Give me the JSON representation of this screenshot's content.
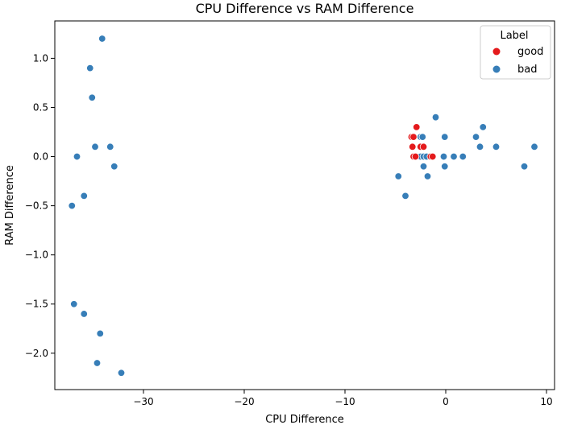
{
  "chart_data": {
    "type": "scatter",
    "title": "CPU Difference vs RAM Difference",
    "xlabel": "CPU Difference",
    "ylabel": "RAM Difference",
    "xlim": [
      -38.8,
      10.8
    ],
    "ylim": [
      -2.37,
      1.38
    ],
    "xticks": [
      -30,
      -20,
      -10,
      0,
      10
    ],
    "yticks": [
      1.0,
      0.5,
      0.0,
      -0.5,
      -1.0,
      -1.5,
      -2.0
    ],
    "xtick_labels": [
      "−30",
      "−20",
      "−10",
      "0",
      "10"
    ],
    "ytick_labels": [
      "1.0",
      "0.5",
      "0.0",
      "−0.5",
      "−1.0",
      "−1.5",
      "−2.0"
    ],
    "grid": false,
    "legend": {
      "title": "Label",
      "placement": "top-right"
    },
    "series": [
      {
        "name": "good",
        "color": "#e41a1c",
        "points": [
          [
            -3.4,
            0.2
          ],
          [
            -3.2,
            0.2
          ],
          [
            -2.9,
            0.3
          ],
          [
            -3.3,
            0.1
          ],
          [
            -2.5,
            0.1
          ],
          [
            -2.2,
            0.1
          ],
          [
            -3.2,
            0.0
          ],
          [
            -3.0,
            0.0
          ],
          [
            -1.5,
            0.0
          ],
          [
            -1.3,
            0.0
          ]
        ]
      },
      {
        "name": "bad",
        "color": "#377eb8",
        "points": [
          [
            -34.1,
            1.2
          ],
          [
            -35.3,
            0.9
          ],
          [
            -35.1,
            0.6
          ],
          [
            -34.8,
            0.1
          ],
          [
            -33.3,
            0.1
          ],
          [
            -36.6,
            0.0
          ],
          [
            -32.9,
            -0.1
          ],
          [
            -35.9,
            -0.4
          ],
          [
            -37.1,
            -0.5
          ],
          [
            -36.9,
            -1.5
          ],
          [
            -35.9,
            -1.6
          ],
          [
            -34.3,
            -1.8
          ],
          [
            -34.6,
            -2.1
          ],
          [
            -32.2,
            -2.2
          ],
          [
            -1.0,
            0.4
          ],
          [
            -2.5,
            0.2
          ],
          [
            -2.3,
            0.2
          ],
          [
            -0.1,
            0.2
          ],
          [
            3.7,
            0.3
          ],
          [
            3.0,
            0.2
          ],
          [
            3.4,
            0.1
          ],
          [
            5.0,
            0.1
          ],
          [
            8.8,
            0.1
          ],
          [
            -2.5,
            0.0
          ],
          [
            -2.2,
            0.0
          ],
          [
            -1.9,
            0.0
          ],
          [
            -0.2,
            0.0
          ],
          [
            0.8,
            0.0
          ],
          [
            1.7,
            0.0
          ],
          [
            -2.2,
            -0.1
          ],
          [
            -0.1,
            -0.1
          ],
          [
            7.8,
            -0.1
          ],
          [
            -4.7,
            -0.2
          ],
          [
            -1.8,
            -0.2
          ],
          [
            -4.0,
            -0.4
          ]
        ]
      }
    ]
  }
}
